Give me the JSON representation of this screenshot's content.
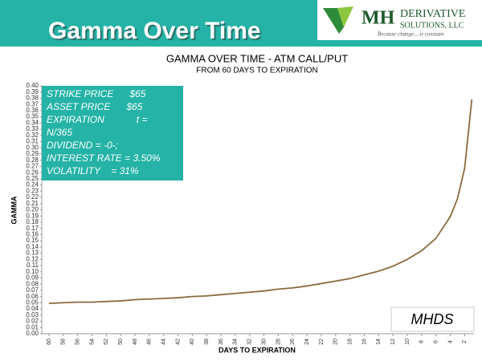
{
  "header": {
    "title": "Gamma Over Time",
    "logo_mark": "MH",
    "logo_line1": "DERIVATIVE",
    "logo_line2": "SOLUTIONS, LLC",
    "logo_tagline": "Because change....is constant"
  },
  "chart_data": {
    "type": "line",
    "title": "GAMMA OVER TIME - ATM CALL/PUT",
    "subtitle": "FROM 60 DAYS TO EXPIRATION",
    "x_label": "DAYS TO EXPIRATION",
    "y_label": "GAMMA",
    "x": [
      60,
      58,
      56,
      54,
      52,
      50,
      48,
      46,
      44,
      42,
      40,
      38,
      36,
      34,
      32,
      30,
      28,
      26,
      24,
      22,
      20,
      18,
      16,
      14,
      12,
      10,
      8,
      6,
      4,
      3,
      2,
      1
    ],
    "series": [
      {
        "color": "#8b6a3e",
        "values": [
          0.049,
          0.05,
          0.051,
          0.051,
          0.052,
          0.053,
          0.055,
          0.056,
          0.057,
          0.058,
          0.06,
          0.061,
          0.063,
          0.065,
          0.067,
          0.069,
          0.072,
          0.074,
          0.077,
          0.081,
          0.085,
          0.089,
          0.095,
          0.101,
          0.109,
          0.12,
          0.134,
          0.154,
          0.189,
          0.218,
          0.267,
          0.378
        ]
      }
    ],
    "xlim": [
      61,
      0.7
    ],
    "xticks": [
      60,
      58,
      56,
      54,
      52,
      50,
      48,
      46,
      44,
      42,
      40,
      38,
      36,
      34,
      32,
      30,
      28,
      26,
      24,
      22,
      20,
      18,
      16,
      14,
      12,
      10,
      8,
      6,
      4,
      2
    ],
    "ylim": [
      0,
      0.4
    ],
    "yticks": [
      {
        "value": 0,
        "label": "0.00"
      },
      0.01,
      0.02,
      0.03,
      0.04,
      0.05,
      0.06,
      0.07,
      0.08,
      0.09,
      {
        "value": 0.1,
        "label": "0.10"
      },
      0.11,
      0.12,
      0.13,
      0.14,
      0.15,
      0.16,
      0.17,
      0.18,
      0.19,
      {
        "value": 0.2,
        "label": "0.20"
      },
      0.21,
      0.22,
      0.23,
      0.24,
      0.25,
      0.26,
      0.27,
      0.28,
      0.29,
      {
        "value": 0.3,
        "label": "0.30"
      },
      0.31,
      0.32,
      0.33,
      0.34,
      0.35,
      0.36,
      0.37,
      0.38,
      0.39,
      {
        "value": 0.4,
        "label": "0.40"
      }
    ],
    "annotations": [
      "STRIKE PRICE      $65",
      "ASSET PRICE      $65",
      "EXPIRATION            t =",
      "N/365",
      "DIVIDEND = -0-;",
      "INTEREST RATE = 3.50%",
      "VOLATILITY    = 31%"
    ],
    "watermark": "MHDS",
    "grid": false
  }
}
